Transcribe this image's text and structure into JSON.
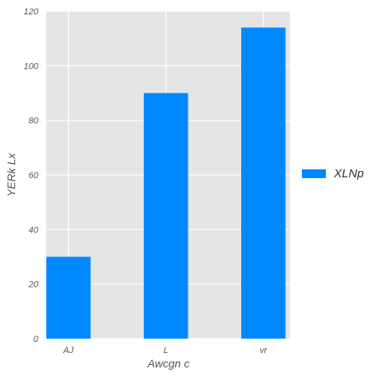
{
  "chart_data": {
    "type": "bar",
    "categories": [
      "AJ",
      "L",
      "vr"
    ],
    "series": [
      {
        "name": "XLNp",
        "values": [
          30,
          90,
          114
        ],
        "color": "#0089FF"
      }
    ],
    "xlabel": "Awcgn c",
    "ylabel": "YERk Lx",
    "ylim": [
      0,
      120
    ],
    "yticks": [
      0,
      20,
      40,
      60,
      80,
      100,
      120
    ],
    "grid": true,
    "background": "#E5E5E5",
    "legend_position": "right"
  }
}
